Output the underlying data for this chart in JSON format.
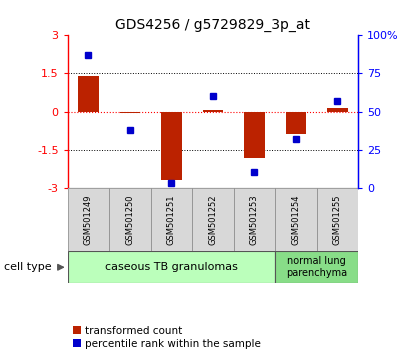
{
  "title": "GDS4256 / g5729829_3p_at",
  "samples": [
    "GSM501249",
    "GSM501250",
    "GSM501251",
    "GSM501252",
    "GSM501253",
    "GSM501254",
    "GSM501255"
  ],
  "transformed_count": [
    1.4,
    -0.05,
    -2.7,
    0.05,
    -1.85,
    -0.9,
    0.12
  ],
  "percentile_rank": [
    87,
    38,
    3,
    60,
    10,
    32,
    57
  ],
  "ylim_left": [
    -3,
    3
  ],
  "ylim_right": [
    0,
    100
  ],
  "yticks_left": [
    -3,
    -1.5,
    0,
    1.5,
    3
  ],
  "yticks_right": [
    0,
    25,
    50,
    75,
    100
  ],
  "yticklabels_right": [
    "0",
    "25",
    "50",
    "75",
    "100%"
  ],
  "yticklabels_left": [
    "-3",
    "-1.5",
    "0",
    "1.5",
    "3"
  ],
  "bar_color": "#bb2200",
  "dot_color": "#0000cc",
  "bar_width": 0.5,
  "group1_label": "caseous TB granulomas",
  "group1_color": "#bbffbb",
  "group1_samples": 5,
  "group2_label": "normal lung\nparenchyma",
  "group2_color": "#88dd88",
  "group2_samples": 2,
  "legend_red_label": "transformed count",
  "legend_blue_label": "percentile rank within the sample",
  "cell_type_label": "cell type"
}
